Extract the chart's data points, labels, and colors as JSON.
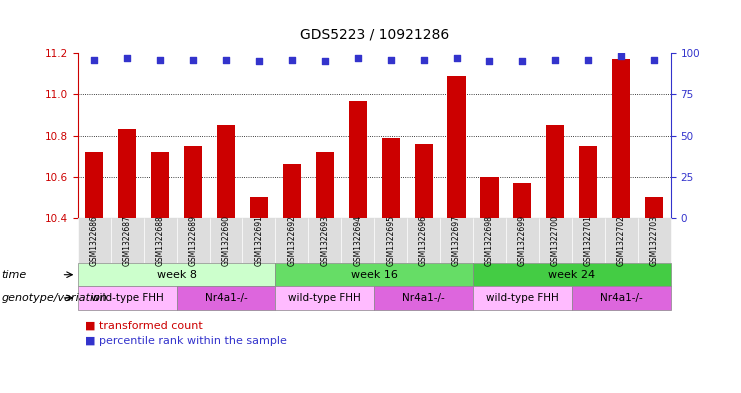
{
  "title": "GDS5223 / 10921286",
  "samples": [
    "GSM1322686",
    "GSM1322687",
    "GSM1322688",
    "GSM1322689",
    "GSM1322690",
    "GSM1322691",
    "GSM1322692",
    "GSM1322693",
    "GSM1322694",
    "GSM1322695",
    "GSM1322696",
    "GSM1322697",
    "GSM1322698",
    "GSM1322699",
    "GSM1322700",
    "GSM1322701",
    "GSM1322702",
    "GSM1322703"
  ],
  "bar_values": [
    10.72,
    10.83,
    10.72,
    10.75,
    10.85,
    10.5,
    10.66,
    10.72,
    10.97,
    10.79,
    10.76,
    11.09,
    10.6,
    10.57,
    10.85,
    10.75,
    11.17,
    10.5
  ],
  "percentile_values": [
    96,
    97,
    96,
    96,
    96,
    95,
    96,
    95,
    97,
    96,
    96,
    97,
    95,
    95,
    96,
    96,
    98,
    96
  ],
  "bar_color": "#cc0000",
  "dot_color": "#3333cc",
  "ylim_left": [
    10.4,
    11.2
  ],
  "ylim_right": [
    0,
    100
  ],
  "yticks_left": [
    10.4,
    10.6,
    10.8,
    11.0,
    11.2
  ],
  "yticks_right": [
    0,
    25,
    50,
    75,
    100
  ],
  "grid_values": [
    10.6,
    10.8,
    11.0
  ],
  "time_groups": [
    {
      "label": "week 8",
      "start": 0,
      "end": 6,
      "color": "#ccffcc"
    },
    {
      "label": "week 16",
      "start": 6,
      "end": 12,
      "color": "#66dd66"
    },
    {
      "label": "week 24",
      "start": 12,
      "end": 18,
      "color": "#44cc44"
    }
  ],
  "genotype_groups": [
    {
      "label": "wild-type FHH",
      "start": 0,
      "end": 3,
      "color": "#ffbbff"
    },
    {
      "label": "Nr4a1-/-",
      "start": 3,
      "end": 6,
      "color": "#dd66dd"
    },
    {
      "label": "wild-type FHH",
      "start": 6,
      "end": 9,
      "color": "#ffbbff"
    },
    {
      "label": "Nr4a1-/-",
      "start": 9,
      "end": 12,
      "color": "#dd66dd"
    },
    {
      "label": "wild-type FHH",
      "start": 12,
      "end": 15,
      "color": "#ffbbff"
    },
    {
      "label": "Nr4a1-/-",
      "start": 15,
      "end": 18,
      "color": "#dd66dd"
    }
  ],
  "legend_items": [
    {
      "label": "transformed count",
      "color": "#cc0000"
    },
    {
      "label": "percentile rank within the sample",
      "color": "#3333cc"
    }
  ],
  "row_labels": [
    "time",
    "genotype/variation"
  ],
  "background_color": "#ffffff",
  "bar_color_left_axis": "#cc0000",
  "dot_color_right_axis": "#3333cc",
  "sample_col_bg": "#dddddd"
}
